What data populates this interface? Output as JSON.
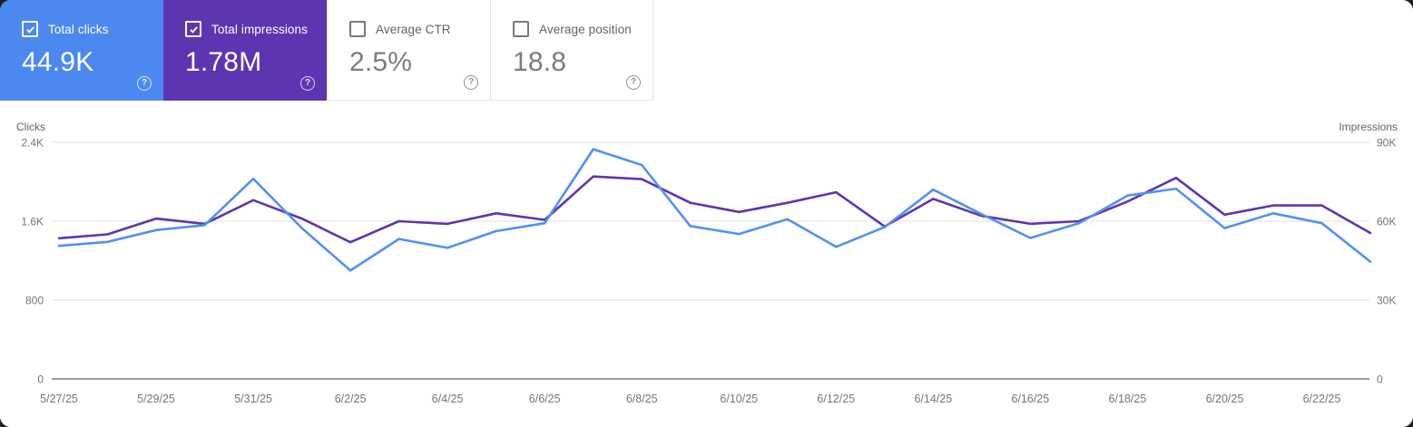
{
  "cards": [
    {
      "label": "Total clicks",
      "value": "44.9K",
      "checked": true,
      "bg": "#4b89f1",
      "text_color": "#ffffff"
    },
    {
      "label": "Total impressions",
      "value": "1.78M",
      "checked": true,
      "bg": "#5e35b1",
      "text_color": "#ffffff"
    },
    {
      "label": "Average CTR",
      "value": "2.5%",
      "checked": false,
      "bg": "#ffffff",
      "text_color": "#797c80"
    },
    {
      "label": "Average position",
      "value": "18.8",
      "checked": false,
      "bg": "#ffffff",
      "text_color": "#797c80"
    }
  ],
  "chart_data": {
    "type": "line",
    "x": [
      "5/27/25",
      "5/28/25",
      "5/29/25",
      "5/30/25",
      "5/31/25",
      "6/1/25",
      "6/2/25",
      "6/3/25",
      "6/4/25",
      "6/5/25",
      "6/6/25",
      "6/7/25",
      "6/8/25",
      "6/9/25",
      "6/10/25",
      "6/11/25",
      "6/12/25",
      "6/13/25",
      "6/14/25",
      "6/15/25",
      "6/16/25",
      "6/17/25",
      "6/18/25",
      "6/19/25",
      "6/20/25",
      "6/21/25",
      "6/22/25",
      "6/23/25"
    ],
    "x_tick_every": 2,
    "series": [
      {
        "name": "Clicks",
        "axis": "left",
        "color": "#5191f2",
        "values": [
          1350,
          1390,
          1510,
          1560,
          2030,
          1530,
          1100,
          1420,
          1330,
          1500,
          1580,
          2330,
          2170,
          1550,
          1470,
          1620,
          1340,
          1540,
          1920,
          1670,
          1430,
          1580,
          1860,
          1930,
          1530,
          1680,
          1580,
          1190
        ]
      },
      {
        "name": "Impressions",
        "axis": "right",
        "color": "#5e35b1",
        "values": [
          53500,
          55000,
          61000,
          59000,
          68000,
          61000,
          52000,
          60000,
          59000,
          63000,
          60500,
          77000,
          76000,
          67000,
          63500,
          67000,
          71000,
          58000,
          68500,
          62000,
          59000,
          60000,
          67500,
          76500,
          62500,
          66000,
          66000,
          55500
        ]
      }
    ],
    "left_axis": {
      "title": "Clicks",
      "ticks": [
        "2.4K",
        "1.6K",
        "800",
        "0"
      ],
      "min": 0,
      "max": 2400
    },
    "right_axis": {
      "title": "Impressions",
      "ticks": [
        "90K",
        "60K",
        "30K",
        "0"
      ],
      "min": 0,
      "max": 90000
    },
    "grid": true,
    "legend_position": "none",
    "gridline_color": "#e8e8e8",
    "baseline_color": "#9e9e9e"
  }
}
